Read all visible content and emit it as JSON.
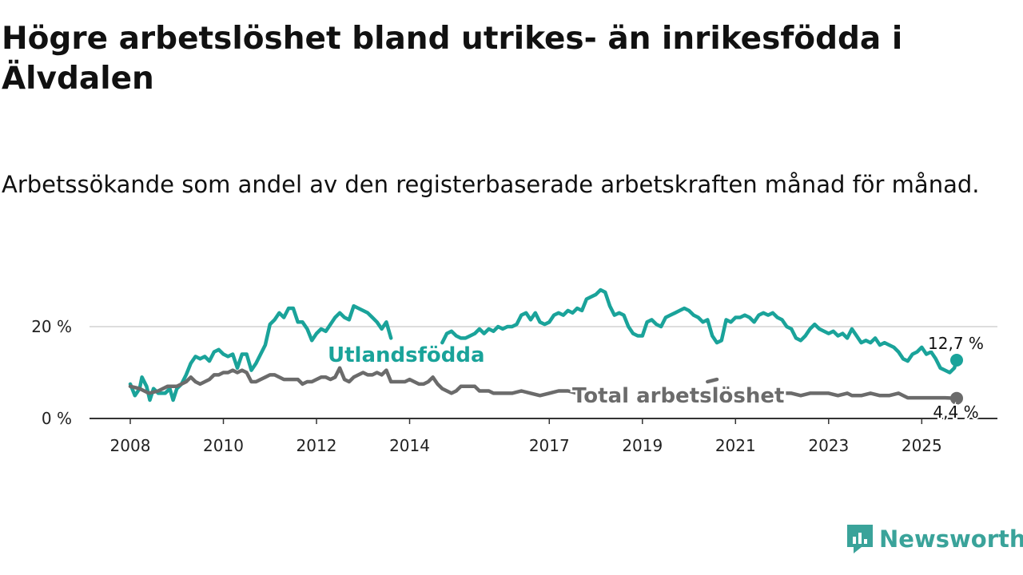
{
  "header": {
    "title": "Högre arbetslöshet bland utrikes- än inrikesfödda i Älvdalen",
    "subtitle": "Arbetssökande som andel av den registerbaserade arbetskraften månad för månad."
  },
  "brand": {
    "name": "Newsworthy",
    "icon": "newsworthy-logo-icon",
    "color": "#3aa39a"
  },
  "chart_data": {
    "type": "line",
    "title": "Högre arbetslöshet bland utrikes- än inrikesfödda i Älvdalen",
    "subtitle": "Arbetssökande som andel av den registerbaserade arbetskraften månad för månad.",
    "xlabel": "",
    "ylabel": "",
    "xlim": [
      2008,
      2025.75
    ],
    "ylim": [
      0,
      30
    ],
    "x_ticks": [
      2008,
      2010,
      2012,
      2014,
      2017,
      2019,
      2021,
      2023,
      2025
    ],
    "y_ticks": [
      {
        "value": 0,
        "label": "0 %"
      },
      {
        "value": 20,
        "label": "20 %"
      }
    ],
    "grid": "horizontal",
    "series": [
      {
        "name": "Utlandsfödda",
        "color": "#1aa39a",
        "end_label": "12,7 %",
        "points": [
          [
            2008.0,
            7.5
          ],
          [
            2008.1,
            5.0
          ],
          [
            2008.2,
            6.5
          ],
          [
            2008.25,
            9.0
          ],
          [
            2008.35,
            7.0
          ],
          [
            2008.42,
            4.0
          ],
          [
            2008.5,
            6.5
          ],
          [
            2008.6,
            5.5
          ],
          [
            2008.75,
            5.5
          ],
          [
            2008.85,
            6.5
          ],
          [
            2008.92,
            4.0
          ],
          [
            2009.0,
            6.5
          ],
          [
            2009.1,
            7.5
          ],
          [
            2009.2,
            9.5
          ],
          [
            2009.3,
            12.0
          ],
          [
            2009.4,
            13.5
          ],
          [
            2009.5,
            13.0
          ],
          [
            2009.6,
            13.5
          ],
          [
            2009.7,
            12.5
          ],
          [
            2009.8,
            14.5
          ],
          [
            2009.9,
            15.0
          ],
          [
            2010.0,
            14.0
          ],
          [
            2010.1,
            13.5
          ],
          [
            2010.2,
            14.0
          ],
          [
            2010.3,
            11.0
          ],
          [
            2010.4,
            14.0
          ],
          [
            2010.5,
            14.0
          ],
          [
            2010.6,
            10.5
          ],
          [
            2010.7,
            12.0
          ],
          [
            2010.8,
            14.0
          ],
          [
            2010.9,
            16.0
          ],
          [
            2011.0,
            20.5
          ],
          [
            2011.1,
            21.5
          ],
          [
            2011.2,
            23.0
          ],
          [
            2011.3,
            22.0
          ],
          [
            2011.4,
            24.0
          ],
          [
            2011.5,
            24.0
          ],
          [
            2011.6,
            21.0
          ],
          [
            2011.7,
            21.0
          ],
          [
            2011.8,
            19.5
          ],
          [
            2011.9,
            17.0
          ],
          [
            2012.0,
            18.5
          ],
          [
            2012.1,
            19.5
          ],
          [
            2012.2,
            19.0
          ],
          [
            2012.3,
            20.5
          ],
          [
            2012.4,
            22.0
          ],
          [
            2012.5,
            23.0
          ],
          [
            2012.6,
            22.0
          ],
          [
            2012.7,
            21.5
          ],
          [
            2012.8,
            24.5
          ],
          [
            2012.9,
            24.0
          ],
          [
            2013.0,
            23.5
          ],
          [
            2013.1,
            23.0
          ],
          [
            2013.2,
            22.0
          ],
          [
            2013.3,
            21.0
          ],
          [
            2013.4,
            19.5
          ],
          [
            2013.5,
            21.0
          ],
          [
            2013.6,
            17.5
          ],
          null,
          [
            2014.7,
            16.5
          ],
          [
            2014.8,
            18.5
          ],
          [
            2014.9,
            19.0
          ],
          [
            2015.0,
            18.0
          ],
          [
            2015.1,
            17.5
          ],
          [
            2015.2,
            17.5
          ],
          [
            2015.3,
            18.0
          ],
          [
            2015.4,
            18.5
          ],
          [
            2015.5,
            19.5
          ],
          [
            2015.6,
            18.5
          ],
          [
            2015.7,
            19.5
          ],
          [
            2015.8,
            19.0
          ],
          [
            2015.9,
            20.0
          ],
          [
            2016.0,
            19.5
          ],
          [
            2016.1,
            20.0
          ],
          [
            2016.2,
            20.0
          ],
          [
            2016.3,
            20.5
          ],
          [
            2016.4,
            22.5
          ],
          [
            2016.5,
            23.0
          ],
          [
            2016.6,
            21.5
          ],
          [
            2016.7,
            23.0
          ],
          [
            2016.8,
            21.0
          ],
          [
            2016.9,
            20.5
          ],
          [
            2017.0,
            21.0
          ],
          [
            2017.1,
            22.5
          ],
          [
            2017.2,
            23.0
          ],
          [
            2017.3,
            22.5
          ],
          [
            2017.4,
            23.5
          ],
          [
            2017.5,
            23.0
          ],
          [
            2017.6,
            24.0
          ],
          [
            2017.7,
            23.5
          ],
          [
            2017.8,
            26.0
          ],
          [
            2017.9,
            26.5
          ],
          [
            2018.0,
            27.0
          ],
          [
            2018.1,
            28.0
          ],
          [
            2018.2,
            27.5
          ],
          [
            2018.3,
            24.5
          ],
          [
            2018.4,
            22.5
          ],
          [
            2018.5,
            23.0
          ],
          [
            2018.6,
            22.5
          ],
          [
            2018.7,
            20.0
          ],
          [
            2018.8,
            18.5
          ],
          [
            2018.9,
            18.0
          ],
          [
            2019.0,
            18.0
          ],
          [
            2019.1,
            21.0
          ],
          [
            2019.2,
            21.5
          ],
          [
            2019.3,
            20.5
          ],
          [
            2019.4,
            20.0
          ],
          [
            2019.5,
            22.0
          ],
          [
            2019.6,
            22.5
          ],
          [
            2019.7,
            23.0
          ],
          [
            2019.8,
            23.5
          ],
          [
            2019.9,
            24.0
          ],
          [
            2020.0,
            23.5
          ],
          [
            2020.1,
            22.5
          ],
          [
            2020.2,
            22.0
          ],
          [
            2020.3,
            21.0
          ],
          [
            2020.4,
            21.5
          ],
          [
            2020.5,
            18.0
          ],
          [
            2020.6,
            16.5
          ],
          [
            2020.7,
            17.0
          ],
          [
            2020.8,
            21.5
          ],
          [
            2020.9,
            21.0
          ],
          [
            2021.0,
            22.0
          ],
          [
            2021.1,
            22.0
          ],
          [
            2021.2,
            22.5
          ],
          [
            2021.3,
            22.0
          ],
          [
            2021.4,
            21.0
          ],
          [
            2021.5,
            22.5
          ],
          [
            2021.6,
            23.0
          ],
          [
            2021.7,
            22.5
          ],
          [
            2021.8,
            23.0
          ],
          [
            2021.9,
            22.0
          ],
          [
            2022.0,
            21.5
          ],
          [
            2022.1,
            20.0
          ],
          [
            2022.2,
            19.5
          ],
          [
            2022.3,
            17.5
          ],
          [
            2022.4,
            17.0
          ],
          [
            2022.5,
            18.0
          ],
          [
            2022.6,
            19.5
          ],
          [
            2022.7,
            20.5
          ],
          [
            2022.8,
            19.5
          ],
          [
            2022.9,
            19.0
          ],
          [
            2023.0,
            18.5
          ],
          [
            2023.1,
            19.0
          ],
          [
            2023.2,
            18.0
          ],
          [
            2023.3,
            18.5
          ],
          [
            2023.4,
            17.5
          ],
          [
            2023.5,
            19.5
          ],
          [
            2023.6,
            18.0
          ],
          [
            2023.7,
            16.5
          ],
          [
            2023.8,
            17.0
          ],
          [
            2023.9,
            16.5
          ],
          [
            2024.0,
            17.5
          ],
          [
            2024.1,
            16.0
          ],
          [
            2024.2,
            16.5
          ],
          [
            2024.3,
            16.0
          ],
          [
            2024.4,
            15.5
          ],
          [
            2024.5,
            14.5
          ],
          [
            2024.6,
            13.0
          ],
          [
            2024.7,
            12.5
          ],
          [
            2024.8,
            14.0
          ],
          [
            2024.9,
            14.5
          ],
          [
            2025.0,
            15.5
          ],
          [
            2025.1,
            14.0
          ],
          [
            2025.2,
            14.5
          ],
          [
            2025.3,
            13.0
          ],
          [
            2025.4,
            11.0
          ],
          [
            2025.5,
            10.5
          ],
          [
            2025.6,
            10.0
          ],
          [
            2025.7,
            11.0
          ],
          [
            2025.75,
            12.7
          ]
        ]
      },
      {
        "name": "Total arbetslöshet",
        "color": "#6b6b6b",
        "end_label": "4,4 %",
        "points": [
          [
            2008.0,
            7.0
          ],
          [
            2008.2,
            6.5
          ],
          [
            2008.4,
            5.5
          ],
          [
            2008.6,
            6.0
          ],
          [
            2008.8,
            7.0
          ],
          [
            2009.0,
            7.0
          ],
          [
            2009.2,
            8.0
          ],
          [
            2009.3,
            9.0
          ],
          [
            2009.4,
            8.0
          ],
          [
            2009.5,
            7.5
          ],
          [
            2009.6,
            8.0
          ],
          [
            2009.7,
            8.5
          ],
          [
            2009.8,
            9.5
          ],
          [
            2009.9,
            9.5
          ],
          [
            2010.0,
            10.0
          ],
          [
            2010.1,
            10.0
          ],
          [
            2010.2,
            10.5
          ],
          [
            2010.3,
            10.0
          ],
          [
            2010.4,
            10.5
          ],
          [
            2010.5,
            10.0
          ],
          [
            2010.6,
            8.0
          ],
          [
            2010.7,
            8.0
          ],
          [
            2010.8,
            8.5
          ],
          [
            2010.9,
            9.0
          ],
          [
            2011.0,
            9.5
          ],
          [
            2011.1,
            9.5
          ],
          [
            2011.2,
            9.0
          ],
          [
            2011.3,
            8.5
          ],
          [
            2011.4,
            8.5
          ],
          [
            2011.5,
            8.5
          ],
          [
            2011.6,
            8.5
          ],
          [
            2011.7,
            7.5
          ],
          [
            2011.8,
            8.0
          ],
          [
            2011.9,
            8.0
          ],
          [
            2012.0,
            8.5
          ],
          [
            2012.1,
            9.0
          ],
          [
            2012.2,
            9.0
          ],
          [
            2012.3,
            8.5
          ],
          [
            2012.4,
            9.0
          ],
          [
            2012.5,
            11.0
          ],
          [
            2012.6,
            8.5
          ],
          [
            2012.7,
            8.0
          ],
          [
            2012.8,
            9.0
          ],
          [
            2012.9,
            9.5
          ],
          [
            2013.0,
            10.0
          ],
          [
            2013.1,
            9.5
          ],
          [
            2013.2,
            9.5
          ],
          [
            2013.3,
            10.0
          ],
          [
            2013.4,
            9.5
          ],
          [
            2013.5,
            10.5
          ],
          [
            2013.6,
            8.0
          ],
          [
            2013.7,
            8.0
          ],
          [
            2013.8,
            8.0
          ],
          [
            2013.9,
            8.0
          ],
          [
            2014.0,
            8.5
          ],
          [
            2014.1,
            8.0
          ],
          [
            2014.2,
            7.5
          ],
          [
            2014.3,
            7.5
          ],
          [
            2014.4,
            8.0
          ],
          [
            2014.5,
            9.0
          ],
          [
            2014.6,
            7.5
          ],
          [
            2014.7,
            6.5
          ],
          [
            2014.8,
            6.0
          ],
          [
            2014.9,
            5.5
          ],
          [
            2015.0,
            6.0
          ],
          [
            2015.1,
            7.0
          ],
          [
            2015.2,
            7.0
          ],
          [
            2015.3,
            7.0
          ],
          [
            2015.4,
            7.0
          ],
          [
            2015.5,
            6.0
          ],
          [
            2015.6,
            6.0
          ],
          [
            2015.7,
            6.0
          ],
          [
            2015.8,
            5.5
          ],
          [
            2015.9,
            5.5
          ],
          [
            2016.0,
            5.5
          ],
          [
            2016.2,
            5.5
          ],
          [
            2016.4,
            6.0
          ],
          [
            2016.6,
            5.5
          ],
          [
            2016.8,
            5.0
          ],
          [
            2017.0,
            5.5
          ],
          [
            2017.2,
            6.0
          ],
          [
            2017.4,
            6.0
          ],
          [
            2017.6,
            5.5
          ],
          null,
          [
            2020.4,
            8.0
          ],
          [
            2020.6,
            8.5
          ],
          null,
          [
            2022.0,
            5.5
          ],
          [
            2022.2,
            5.5
          ],
          [
            2022.4,
            5.0
          ],
          [
            2022.6,
            5.5
          ],
          [
            2022.8,
            5.5
          ],
          [
            2023.0,
            5.5
          ],
          [
            2023.2,
            5.0
          ],
          [
            2023.4,
            5.5
          ],
          [
            2023.5,
            5.0
          ],
          [
            2023.7,
            5.0
          ],
          [
            2023.9,
            5.5
          ],
          [
            2024.1,
            5.0
          ],
          [
            2024.3,
            5.0
          ],
          [
            2024.5,
            5.5
          ],
          [
            2024.7,
            4.5
          ],
          [
            2024.9,
            4.5
          ],
          [
            2025.1,
            4.5
          ],
          [
            2025.3,
            4.5
          ],
          [
            2025.5,
            4.5
          ],
          [
            2025.75,
            4.4
          ]
        ]
      }
    ],
    "annotations": [
      {
        "text": "Utlandsfödda",
        "series": "Utlandsfödda"
      },
      {
        "text": "Total arbetslöshet",
        "series": "Total arbetslöshet"
      },
      {
        "text": "12,7 %",
        "series": "Utlandsfödda"
      },
      {
        "text": "4,4 %",
        "series": "Total arbetslöshet"
      }
    ]
  }
}
